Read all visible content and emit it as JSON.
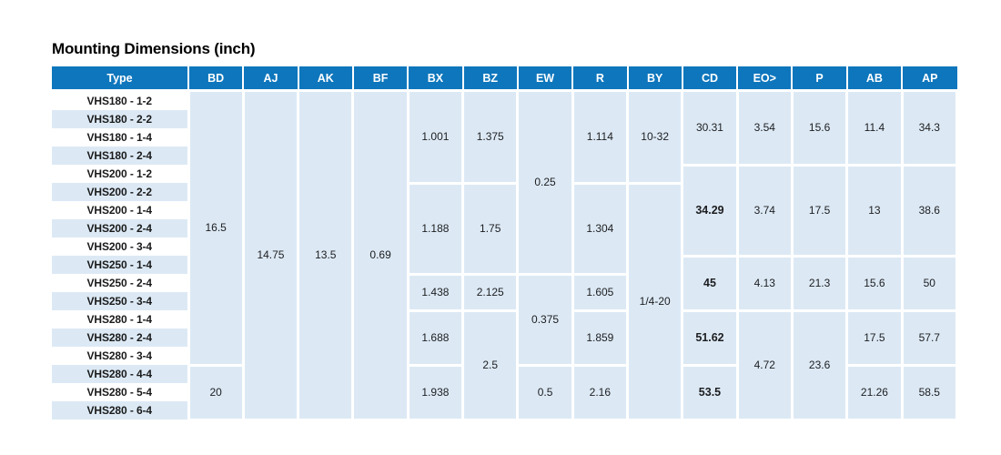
{
  "title": "Mounting Dimensions (inch)",
  "colors": {
    "header_bg": "#0e76bc",
    "cell_bg": "#dce9f5",
    "stripe_bg": "#dce9f5",
    "header_text": "#ffffff",
    "body_text": "#1d1d1f"
  },
  "table": {
    "headers": [
      "Type",
      "BD",
      "AJ",
      "AK",
      "BF",
      "BX",
      "BZ",
      "EW",
      "R",
      "BY",
      "CD",
      "EO>",
      "P",
      "AB",
      "AP"
    ],
    "types": [
      "VHS180 - 1-2",
      "VHS180 - 2-2",
      "VHS180 - 1-4",
      "VHS180 - 2-4",
      "VHS200 - 1-2",
      "VHS200 - 2-2",
      "VHS200 - 1-4",
      "VHS200 - 2-4",
      "VHS200 - 3-4",
      "VHS250 - 1-4",
      "VHS250 - 2-4",
      "VHS250 - 3-4",
      "VHS280 - 1-4",
      "VHS280 - 2-4",
      "VHS280 - 3-4",
      "VHS280 - 4-4",
      "VHS280 - 5-4",
      "VHS280 - 6-4"
    ],
    "columns": [
      {
        "key": "BD",
        "groups": [
          {
            "rows": 15,
            "value": "16.5"
          },
          {
            "rows": 3,
            "value": "20"
          }
        ]
      },
      {
        "key": "AJ",
        "groups": [
          {
            "rows": 18,
            "value": "14.75"
          }
        ]
      },
      {
        "key": "AK",
        "groups": [
          {
            "rows": 18,
            "value": "13.5"
          }
        ]
      },
      {
        "key": "BF",
        "groups": [
          {
            "rows": 18,
            "value": "0.69"
          }
        ]
      },
      {
        "key": "BX",
        "groups": [
          {
            "rows": 5,
            "value": "1.001"
          },
          {
            "rows": 5,
            "value": "1.188"
          },
          {
            "rows": 2,
            "value": "1.438"
          },
          {
            "rows": 3,
            "value": "1.688"
          },
          {
            "rows": 3,
            "value": "1.938"
          }
        ]
      },
      {
        "key": "BZ",
        "groups": [
          {
            "rows": 5,
            "value": "1.375"
          },
          {
            "rows": 5,
            "value": "1.75"
          },
          {
            "rows": 2,
            "value": "2.125"
          },
          {
            "rows": 6,
            "value": "2.5"
          }
        ]
      },
      {
        "key": "EW",
        "groups": [
          {
            "rows": 10,
            "value": "0.25"
          },
          {
            "rows": 5,
            "value": "0.375"
          },
          {
            "rows": 3,
            "value": "0.5"
          }
        ]
      },
      {
        "key": "R",
        "groups": [
          {
            "rows": 5,
            "value": "1.114"
          },
          {
            "rows": 5,
            "value": "1.304"
          },
          {
            "rows": 2,
            "value": "1.605"
          },
          {
            "rows": 3,
            "value": "1.859"
          },
          {
            "rows": 3,
            "value": "2.16"
          }
        ]
      },
      {
        "key": "BY",
        "groups": [
          {
            "rows": 5,
            "value": "10-32"
          },
          {
            "rows": 13,
            "value": "1/4-20"
          }
        ]
      },
      {
        "key": "CD",
        "groups": [
          {
            "rows": 4,
            "value": "30.31"
          },
          {
            "rows": 5,
            "value": "34.29",
            "bold": true
          },
          {
            "rows": 3,
            "value": "45",
            "bold": true
          },
          {
            "rows": 3,
            "value": "51.62",
            "bold": true
          },
          {
            "rows": 3,
            "value": "53.5",
            "bold": true
          }
        ]
      },
      {
        "key": "EO>",
        "groups": [
          {
            "rows": 4,
            "value": "3.54"
          },
          {
            "rows": 5,
            "value": "3.74"
          },
          {
            "rows": 3,
            "value": "4.13"
          },
          {
            "rows": 6,
            "value": "4.72"
          }
        ]
      },
      {
        "key": "P",
        "groups": [
          {
            "rows": 4,
            "value": "15.6"
          },
          {
            "rows": 5,
            "value": "17.5"
          },
          {
            "rows": 3,
            "value": "21.3"
          },
          {
            "rows": 6,
            "value": "23.6"
          }
        ]
      },
      {
        "key": "AB",
        "groups": [
          {
            "rows": 4,
            "value": "11.4"
          },
          {
            "rows": 5,
            "value": "13"
          },
          {
            "rows": 3,
            "value": "15.6"
          },
          {
            "rows": 3,
            "value": "17.5"
          },
          {
            "rows": 3,
            "value": "21.26"
          }
        ]
      },
      {
        "key": "AP",
        "groups": [
          {
            "rows": 4,
            "value": "34.3"
          },
          {
            "rows": 5,
            "value": "38.6"
          },
          {
            "rows": 3,
            "value": "50"
          },
          {
            "rows": 3,
            "value": "57.7"
          },
          {
            "rows": 3,
            "value": "58.5"
          }
        ]
      }
    ]
  }
}
